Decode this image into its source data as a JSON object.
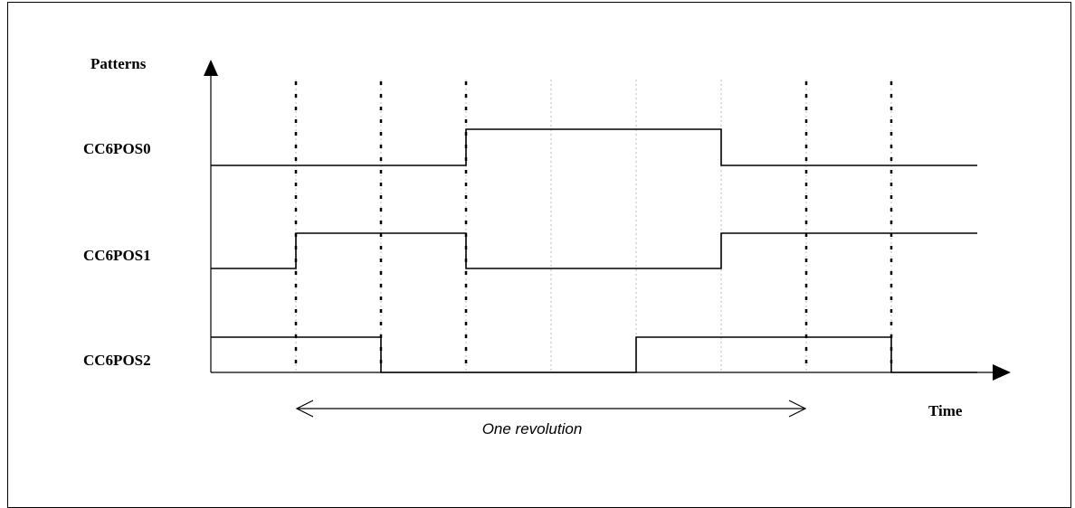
{
  "y_axis_label": "Patterns",
  "x_axis_label": "Time",
  "signals": [
    {
      "name": "CC6POS0",
      "levels": [
        0,
        0,
        0,
        1,
        1,
        1,
        0,
        0,
        0
      ]
    },
    {
      "name": "CC6POS1",
      "levels": [
        0,
        1,
        1,
        0,
        0,
        0,
        1,
        1,
        1
      ]
    },
    {
      "name": "CC6POS2",
      "levels": [
        1,
        1,
        0,
        0,
        0,
        1,
        1,
        1,
        0
      ]
    }
  ],
  "revolution_label": "One revolution"
}
